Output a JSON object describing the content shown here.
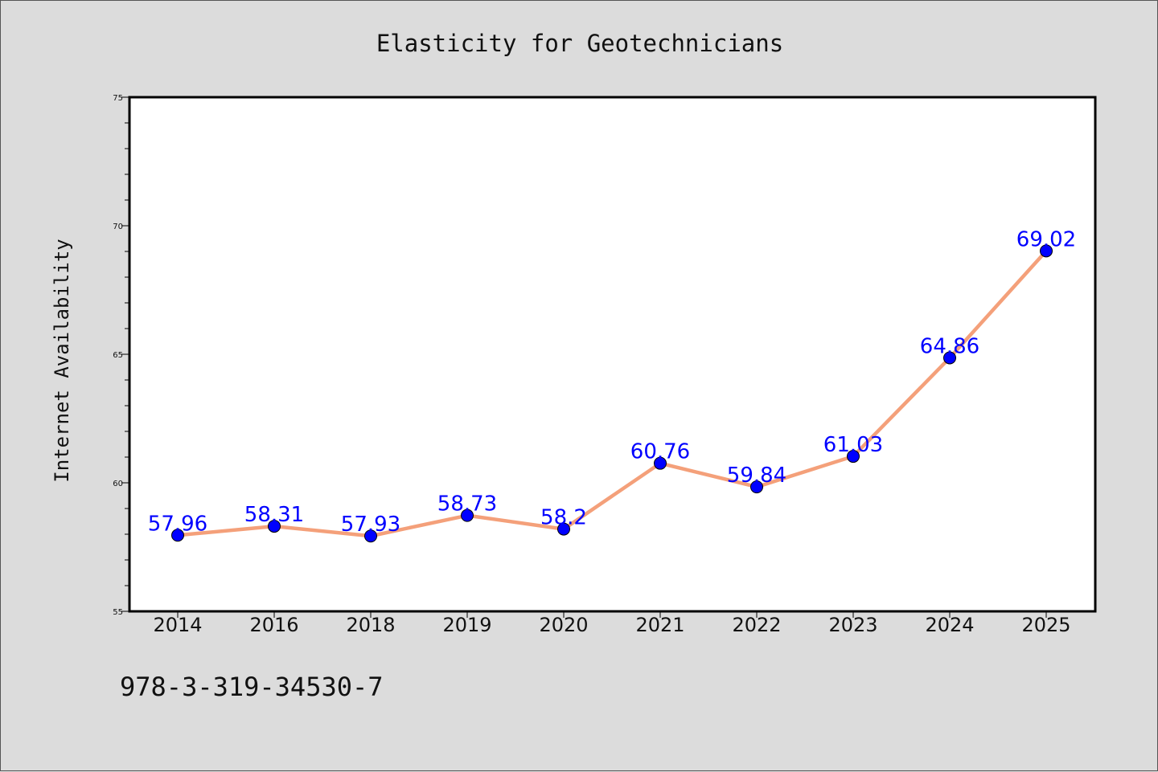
{
  "chart_data": {
    "type": "line",
    "title": "Elasticity for Geotechnicians",
    "xlabel": "",
    "ylabel": "Internet Availability",
    "categories": [
      "2014",
      "2016",
      "2018",
      "2019",
      "2020",
      "2021",
      "2022",
      "2023",
      "2024",
      "2025"
    ],
    "series": [
      {
        "values": [
          57.96,
          58.31,
          57.93,
          58.73,
          58.2,
          60.76,
          59.84,
          61.03,
          64.86,
          69.02
        ],
        "line_color": "#f4a07a",
        "marker_color": "#0000ff"
      }
    ],
    "data_labels": [
      "57.96",
      "58.31",
      "57.93",
      "58.73",
      "58.2",
      "60.76",
      "59.84",
      "61.03",
      "64.86",
      "69.02"
    ],
    "ylim": [
      55,
      75
    ],
    "y_ticks": [
      "55",
      "60",
      "65",
      "70",
      "75"
    ],
    "grid": false,
    "legend": "none"
  },
  "footer": {
    "text": "978-3-319-34530-7"
  },
  "colors": {
    "background": "#dcdcdc",
    "plot_background": "#ffffff",
    "line": "#f4a07a",
    "marker": "#0000ff",
    "data_label": "#0000ff"
  }
}
